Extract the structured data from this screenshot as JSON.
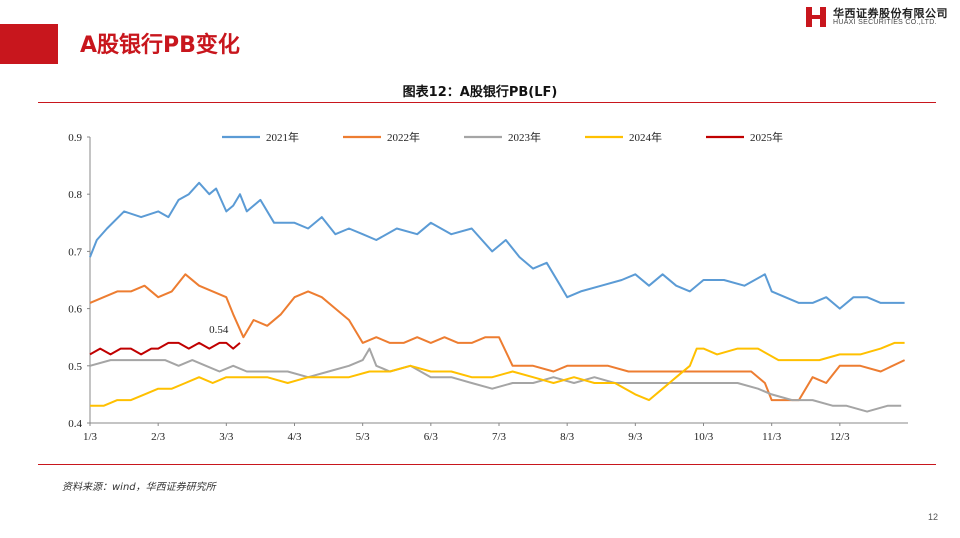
{
  "slide": {
    "title": "A股银行PB变化",
    "page_number": "12"
  },
  "logo": {
    "name_cn": "华西证券股份有限公司",
    "name_en": "HUAXI SECURITIES CO.,LTD."
  },
  "chart_title": "图表12：A股银行PB(LF)",
  "source": "资料来源：wind，华西证券研究所",
  "colors": {
    "accent": "#c8161d",
    "s2021": "#5b9bd5",
    "s2022": "#ed7d31",
    "s2023": "#a5a5a5",
    "s2024": "#ffc000",
    "s2025": "#c00000"
  },
  "chart_data": {
    "type": "line",
    "title": "A股银行PB(LF)",
    "xlabel": "",
    "ylabel": "",
    "ylim": [
      0.4,
      0.9
    ],
    "yticks": [
      "0.4",
      "0.5",
      "0.6",
      "0.7",
      "0.8",
      "0.9"
    ],
    "xticks": [
      "1/3",
      "2/3",
      "3/3",
      "4/3",
      "5/3",
      "6/3",
      "7/3",
      "8/3",
      "9/3",
      "10/3",
      "11/3",
      "12/3"
    ],
    "x_is_month_fraction": true,
    "legend_position": "top",
    "grid": false,
    "annotation": {
      "text": "0.54",
      "x": 3.1,
      "y": 0.54
    },
    "series": [
      {
        "name": "2021年",
        "color": "#5b9bd5",
        "x": [
          1.0,
          1.1,
          1.25,
          1.5,
          1.75,
          2.0,
          2.15,
          2.3,
          2.45,
          2.6,
          2.75,
          2.85,
          3.0,
          3.1,
          3.2,
          3.3,
          3.5,
          3.7,
          4.0,
          4.2,
          4.4,
          4.6,
          4.8,
          5.0,
          5.2,
          5.5,
          5.8,
          6.0,
          6.3,
          6.6,
          6.9,
          7.1,
          7.3,
          7.5,
          7.7,
          7.9,
          8.0,
          8.2,
          8.5,
          8.8,
          9.0,
          9.2,
          9.4,
          9.6,
          9.8,
          10.0,
          10.3,
          10.6,
          10.9,
          11.0,
          11.2,
          11.4,
          11.6,
          11.8,
          12.0,
          12.2,
          12.4,
          12.6,
          12.8,
          12.95
        ],
        "y": [
          0.69,
          0.72,
          0.74,
          0.77,
          0.76,
          0.77,
          0.76,
          0.79,
          0.8,
          0.82,
          0.8,
          0.81,
          0.77,
          0.78,
          0.8,
          0.77,
          0.79,
          0.75,
          0.75,
          0.74,
          0.76,
          0.73,
          0.74,
          0.73,
          0.72,
          0.74,
          0.73,
          0.75,
          0.73,
          0.74,
          0.7,
          0.72,
          0.69,
          0.67,
          0.68,
          0.64,
          0.62,
          0.63,
          0.64,
          0.65,
          0.66,
          0.64,
          0.66,
          0.64,
          0.63,
          0.65,
          0.65,
          0.64,
          0.66,
          0.63,
          0.62,
          0.61,
          0.61,
          0.62,
          0.6,
          0.62,
          0.62,
          0.61,
          0.61,
          0.61
        ]
      },
      {
        "name": "2022年",
        "color": "#ed7d31",
        "x": [
          1.0,
          1.2,
          1.4,
          1.6,
          1.8,
          2.0,
          2.2,
          2.4,
          2.6,
          2.8,
          3.0,
          3.1,
          3.25,
          3.4,
          3.6,
          3.8,
          4.0,
          4.2,
          4.4,
          4.6,
          4.8,
          5.0,
          5.2,
          5.4,
          5.6,
          5.8,
          6.0,
          6.2,
          6.4,
          6.6,
          6.8,
          7.0,
          7.2,
          7.5,
          7.8,
          8.0,
          8.3,
          8.6,
          8.9,
          9.2,
          9.5,
          9.8,
          10.1,
          10.4,
          10.7,
          10.9,
          11.0,
          11.2,
          11.4,
          11.6,
          11.8,
          12.0,
          12.3,
          12.6,
          12.95
        ],
        "y": [
          0.61,
          0.62,
          0.63,
          0.63,
          0.64,
          0.62,
          0.63,
          0.66,
          0.64,
          0.63,
          0.62,
          0.59,
          0.55,
          0.58,
          0.57,
          0.59,
          0.62,
          0.63,
          0.62,
          0.6,
          0.58,
          0.54,
          0.55,
          0.54,
          0.54,
          0.55,
          0.54,
          0.55,
          0.54,
          0.54,
          0.55,
          0.55,
          0.5,
          0.5,
          0.49,
          0.5,
          0.5,
          0.5,
          0.49,
          0.49,
          0.49,
          0.49,
          0.49,
          0.49,
          0.49,
          0.47,
          0.44,
          0.44,
          0.44,
          0.48,
          0.47,
          0.5,
          0.5,
          0.49,
          0.51
        ]
      },
      {
        "name": "2023年",
        "color": "#a5a5a5",
        "x": [
          1.0,
          1.3,
          1.6,
          1.9,
          2.1,
          2.3,
          2.5,
          2.7,
          2.9,
          3.1,
          3.3,
          3.6,
          3.9,
          4.2,
          4.5,
          4.8,
          5.0,
          5.1,
          5.2,
          5.4,
          5.7,
          6.0,
          6.3,
          6.6,
          6.9,
          7.2,
          7.5,
          7.8,
          8.1,
          8.4,
          8.7,
          9.0,
          9.3,
          9.6,
          9.9,
          10.2,
          10.5,
          10.8,
          11.0,
          11.3,
          11.6,
          11.9,
          12.1,
          12.4,
          12.7,
          12.9
        ],
        "y": [
          0.5,
          0.51,
          0.51,
          0.51,
          0.51,
          0.5,
          0.51,
          0.5,
          0.49,
          0.5,
          0.49,
          0.49,
          0.49,
          0.48,
          0.49,
          0.5,
          0.51,
          0.53,
          0.5,
          0.49,
          0.5,
          0.48,
          0.48,
          0.47,
          0.46,
          0.47,
          0.47,
          0.48,
          0.47,
          0.48,
          0.47,
          0.47,
          0.47,
          0.47,
          0.47,
          0.47,
          0.47,
          0.46,
          0.45,
          0.44,
          0.44,
          0.43,
          0.43,
          0.42,
          0.43,
          0.43
        ]
      },
      {
        "name": "2024年",
        "color": "#ffc000",
        "x": [
          1.0,
          1.2,
          1.4,
          1.6,
          1.8,
          2.0,
          2.2,
          2.4,
          2.6,
          2.8,
          3.0,
          3.3,
          3.6,
          3.9,
          4.2,
          4.5,
          4.8,
          5.1,
          5.4,
          5.7,
          6.0,
          6.3,
          6.6,
          6.9,
          7.2,
          7.5,
          7.8,
          8.1,
          8.4,
          8.7,
          9.0,
          9.2,
          9.4,
          9.6,
          9.8,
          9.9,
          10.0,
          10.2,
          10.5,
          10.8,
          11.1,
          11.4,
          11.7,
          12.0,
          12.3,
          12.6,
          12.8,
          12.95
        ],
        "y": [
          0.43,
          0.43,
          0.44,
          0.44,
          0.45,
          0.46,
          0.46,
          0.47,
          0.48,
          0.47,
          0.48,
          0.48,
          0.48,
          0.47,
          0.48,
          0.48,
          0.48,
          0.49,
          0.49,
          0.5,
          0.49,
          0.49,
          0.48,
          0.48,
          0.49,
          0.48,
          0.47,
          0.48,
          0.47,
          0.47,
          0.45,
          0.44,
          0.46,
          0.48,
          0.5,
          0.53,
          0.53,
          0.52,
          0.53,
          0.53,
          0.51,
          0.51,
          0.51,
          0.52,
          0.52,
          0.53,
          0.54,
          0.54
        ]
      },
      {
        "name": "2025年",
        "color": "#c00000",
        "x": [
          1.0,
          1.15,
          1.3,
          1.45,
          1.6,
          1.75,
          1.9,
          2.0,
          2.15,
          2.3,
          2.45,
          2.6,
          2.75,
          2.9,
          3.0,
          3.1,
          3.2
        ],
        "y": [
          0.52,
          0.53,
          0.52,
          0.53,
          0.53,
          0.52,
          0.53,
          0.53,
          0.54,
          0.54,
          0.53,
          0.54,
          0.53,
          0.54,
          0.54,
          0.53,
          0.54
        ]
      }
    ]
  }
}
